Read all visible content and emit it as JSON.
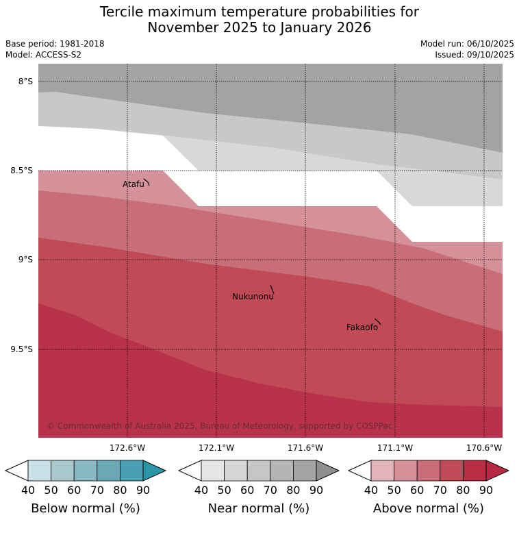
{
  "title": {
    "line1": "Tercile maximum temperature probabilities for",
    "line2": "November 2025 to January 2026"
  },
  "meta": {
    "base_period": "Base period: 1981-2018",
    "model": "Model: ACCESS-S2",
    "model_run": "Model run: 06/10/2025",
    "issued": "Issued: 09/10/2025"
  },
  "map": {
    "lat_labels": [
      "8°S",
      "8.5°S",
      "9°S",
      "9.5°S"
    ],
    "lon_labels": [
      "172.6°W",
      "172.1°W",
      "171.6°W",
      "171.1°W",
      "170.6°W"
    ],
    "places": [
      "Atafu",
      "Nukunonu",
      "Fakaofo"
    ],
    "copyright": "© Commonwealth of Australia 2025, Bureau of Meteorology, supported by COSPPac"
  },
  "colorbars": [
    {
      "name": "below-normal",
      "title": "Below normal (%)",
      "ticks": [
        "40",
        "50",
        "60",
        "70",
        "80",
        "90"
      ],
      "colors": [
        "#c9e1e6",
        "#a9c9cf",
        "#88b8c2",
        "#6aa8b5",
        "#4aa0b2",
        "#2a97a8"
      ]
    },
    {
      "name": "near-normal",
      "title": "Near normal (%)",
      "ticks": [
        "40",
        "50",
        "60",
        "70",
        "80",
        "90"
      ],
      "colors": [
        "#e6e6e6",
        "#d6d6d6",
        "#c6c6c6",
        "#b5b5b5",
        "#a3a3a3",
        "#8f8f8f"
      ]
    },
    {
      "name": "above-normal",
      "title": "Above normal (%)",
      "ticks": [
        "40",
        "50",
        "60",
        "70",
        "80",
        "90"
      ],
      "colors": [
        "#e3b5bb",
        "#d4919a",
        "#c96e78",
        "#c04b57",
        "#b92d44",
        "#b82843"
      ]
    }
  ]
}
